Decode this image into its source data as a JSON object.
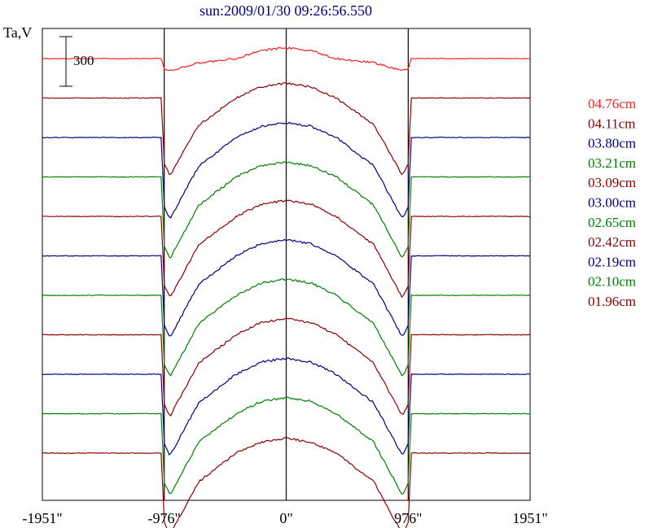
{
  "chart_data": {
    "type": "line",
    "title": "sun:2009/01/30 09:26:56.550",
    "ylabel": "Ta,V",
    "xlabel": "",
    "xlim": [
      -1951,
      1951
    ],
    "x_ticks": [
      {
        "value": -1951,
        "label": "-1951\""
      },
      {
        "value": -976,
        "label": "-976\""
      },
      {
        "value": 0,
        "label": "0\""
      },
      {
        "value": 976,
        "label": "976\""
      },
      {
        "value": 1951,
        "label": "1951\""
      }
    ],
    "vertical_lines": [
      -976,
      0,
      976
    ],
    "scale_bar": {
      "label": "300",
      "value": 300
    },
    "profile": {
      "x": [
        -1951,
        -1000,
        -976,
        -930,
        -700,
        -400,
        -200,
        0,
        200,
        400,
        700,
        930,
        976,
        1000,
        1951
      ],
      "y": [
        0,
        0,
        85,
        100,
        35,
        0,
        -25,
        -33,
        -25,
        0,
        35,
        100,
        85,
        0,
        0
      ]
    },
    "series": [
      {
        "name": "04.76cm",
        "color": "#ff2020",
        "offset": 0,
        "depth_scale": 0.15,
        "dome_scale": 0.4
      },
      {
        "name": "04.11cm",
        "color": "#8b0000",
        "offset": 1,
        "depth_scale": 0.95,
        "dome_scale": 0.55
      },
      {
        "name": "03.80cm",
        "color": "#000080",
        "offset": 2,
        "depth_scale": 1.0,
        "dome_scale": 0.55
      },
      {
        "name": "03.21cm",
        "color": "#008000",
        "offset": 3,
        "depth_scale": 1.0,
        "dome_scale": 0.55
      },
      {
        "name": "03.09cm",
        "color": "#8b0000",
        "offset": 4,
        "depth_scale": 1.0,
        "dome_scale": 0.6
      },
      {
        "name": "03.00cm",
        "color": "#000080",
        "offset": 5,
        "depth_scale": 1.0,
        "dome_scale": 0.6
      },
      {
        "name": "02.65cm",
        "color": "#008000",
        "offset": 6,
        "depth_scale": 1.0,
        "dome_scale": 0.6
      },
      {
        "name": "02.42cm",
        "color": "#8b0000",
        "offset": 7,
        "depth_scale": 1.0,
        "dome_scale": 0.6
      },
      {
        "name": "02.19cm",
        "color": "#000080",
        "offset": 8,
        "depth_scale": 1.0,
        "dome_scale": 0.6
      },
      {
        "name": "02.10cm",
        "color": "#008000",
        "offset": 9,
        "depth_scale": 1.0,
        "dome_scale": 0.6
      },
      {
        "name": "01.96cm",
        "color": "#8b0000",
        "offset": 10,
        "depth_scale": 1.0,
        "dome_scale": 0.55
      }
    ],
    "grid": false,
    "legend_position": "right"
  }
}
